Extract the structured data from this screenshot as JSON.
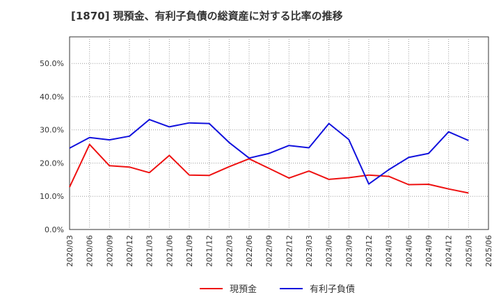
{
  "chart_data": {
    "type": "line",
    "title": "[1870]  現預金、有利子負債の総資産に対する比率の推移",
    "xlabel": "",
    "ylabel": "",
    "ylim": [
      0,
      0.58
    ],
    "grid": true,
    "legend_position": "bottom-center",
    "y_ticks": [
      0,
      0.1,
      0.2,
      0.3,
      0.4,
      0.5
    ],
    "y_tick_labels": [
      "0.0%",
      "10.0%",
      "20.0%",
      "30.0%",
      "40.0%",
      "50.0%"
    ],
    "categories": [
      "2020/03",
      "2020/06",
      "2020/09",
      "2020/12",
      "2021/03",
      "2021/06",
      "2021/09",
      "2021/12",
      "2022/03",
      "2022/06",
      "2022/09",
      "2022/12",
      "2023/03",
      "2023/06",
      "2023/09",
      "2023/12",
      "2024/03",
      "2024/06",
      "2024/09",
      "2024/12",
      "2025/03",
      "2025/06"
    ],
    "series": [
      {
        "name": "現預金",
        "color": "#ee1111",
        "values": [
          0.128,
          0.256,
          0.192,
          0.188,
          0.171,
          0.223,
          0.164,
          0.163,
          0.189,
          0.213,
          0.184,
          0.155,
          0.176,
          0.151,
          0.156,
          0.164,
          0.16,
          0.135,
          0.136,
          0.122,
          0.11,
          null
        ]
      },
      {
        "name": "有利子負債",
        "color": "#1111dd",
        "values": [
          0.245,
          0.277,
          0.27,
          0.281,
          0.331,
          0.309,
          0.321,
          0.319,
          0.262,
          0.215,
          0.229,
          0.253,
          0.246,
          0.319,
          0.271,
          0.137,
          0.18,
          0.217,
          0.229,
          0.294,
          0.268,
          null
        ]
      }
    ]
  }
}
